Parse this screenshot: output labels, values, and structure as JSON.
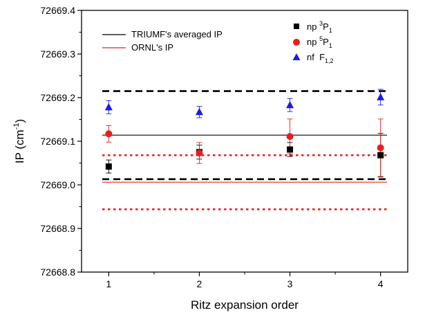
{
  "chart_data": {
    "type": "scatter",
    "xlabel": "Ritz expansion order",
    "ylabel": {
      "main": "IP (cm",
      "sup": "-1",
      "close": ")"
    },
    "xlim": [
      0.7,
      4.3
    ],
    "ylim": [
      72668.8,
      72669.4
    ],
    "x_ticks": [
      "1",
      "2",
      "3",
      "4"
    ],
    "y_ticks": [
      "72668.8",
      "72668.9",
      "72669.0",
      "72669.1",
      "72669.2",
      "72669.3",
      "72669.4"
    ],
    "grid": false,
    "legend_lines": [
      {
        "name": "TRIUMF's averaged IP",
        "color": "#000000"
      },
      {
        "name": "ORNL's IP",
        "color": "#e8221c"
      }
    ],
    "legend_markers": [
      {
        "pre": "np ",
        "sup": "3",
        "main": "P",
        "sub": "1",
        "marker": "square",
        "color": "#000000"
      },
      {
        "pre": "np ",
        "sup": "5",
        "main": "P",
        "sub": "1",
        "marker": "circle",
        "color": "#ee1c1c"
      },
      {
        "pre": "nf  ",
        "sup": "",
        "main": "F",
        "sub": "1,2",
        "marker": "triangle",
        "color": "#1b1be6"
      }
    ],
    "series": [
      {
        "marker": "square",
        "color": "#000000",
        "x": [
          1,
          2,
          3,
          4
        ],
        "y": [
          72669.042,
          72669.075,
          72669.081,
          72669.068
        ],
        "err": [
          0.015,
          0.016,
          0.016,
          0.05
        ]
      },
      {
        "marker": "circle",
        "color": "#ee1c1c",
        "x": [
          1,
          2,
          3,
          4
        ],
        "y": [
          72669.117,
          72669.073,
          72669.111,
          72669.085
        ],
        "err": [
          0.019,
          0.024,
          0.04,
          0.066
        ]
      },
      {
        "marker": "triangle",
        "color": "#1b1be6",
        "x": [
          1,
          2,
          3,
          4
        ],
        "y": [
          72669.178,
          72669.167,
          72669.183,
          72669.201
        ],
        "err": [
          0.015,
          0.013,
          0.015,
          0.018
        ]
      }
    ],
    "reference_lines": [
      {
        "y": 72669.114,
        "color": "#000000",
        "style": "solid"
      },
      {
        "y": 72669.215,
        "color": "#000000",
        "style": "dashed"
      },
      {
        "y": 72669.013,
        "color": "#000000",
        "style": "dashed"
      },
      {
        "y": 72669.006,
        "color": "#e8221c",
        "style": "solid"
      },
      {
        "y": 72669.068,
        "color": "#e8221c",
        "style": "dotted"
      },
      {
        "y": 72668.944,
        "color": "#e8221c",
        "style": "dotted"
      }
    ]
  }
}
